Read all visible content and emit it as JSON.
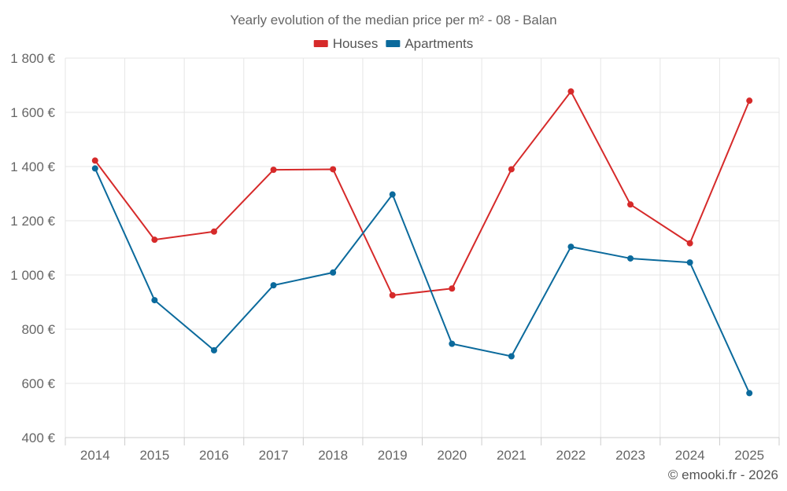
{
  "chart_data": {
    "type": "line",
    "title": "Yearly evolution of the median price per m² - 08 - Balan",
    "categories": [
      "2014",
      "2015",
      "2016",
      "2017",
      "2018",
      "2019",
      "2020",
      "2021",
      "2022",
      "2023",
      "2024",
      "2025"
    ],
    "series": [
      {
        "name": "Houses",
        "color": "#d62a2a",
        "values": [
          1422,
          1130,
          1160,
          1388,
          1390,
          925,
          950,
          1390,
          1677,
          1260,
          1117,
          1643
        ]
      },
      {
        "name": "Apartments",
        "color": "#0b6a9c",
        "values": [
          1393,
          907,
          722,
          962,
          1009,
          1297,
          746,
          700,
          1104,
          1061,
          1046,
          564
        ]
      }
    ],
    "ylim": [
      400,
      1800
    ],
    "yticks": [
      400,
      600,
      800,
      1000,
      1200,
      1400,
      1600,
      1800
    ],
    "ytick_labels": [
      "400 €",
      "600 €",
      "800 €",
      "1 000 €",
      "1 200 €",
      "1 400 €",
      "1 600 €",
      "1 800 €"
    ],
    "xlabel": "",
    "ylabel": "",
    "grid": true,
    "legend_position": "top-center"
  },
  "credit": "© emooki.fr - 2026"
}
